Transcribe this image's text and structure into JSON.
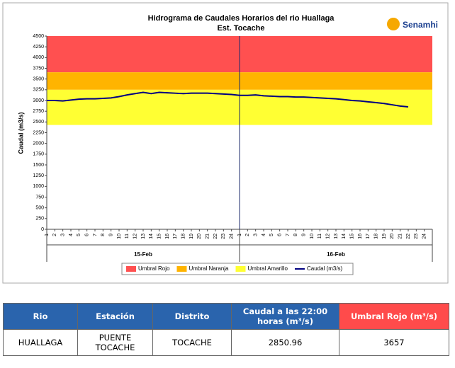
{
  "chart_data": {
    "type": "line",
    "title": "Hidrograma de Caudales Horarios del rio Huallaga",
    "subtitle": "Est. Tocache",
    "logo": "Senamhi",
    "y_label": "Caudal (m3/s)",
    "categories": [
      "1",
      "2",
      "3",
      "4",
      "5",
      "6",
      "7",
      "8",
      "9",
      "10",
      "11",
      "12",
      "13",
      "14",
      "15",
      "16",
      "17",
      "18",
      "19",
      "20",
      "21",
      "22",
      "23",
      "24",
      "1",
      "2",
      "3",
      "4",
      "5",
      "6",
      "7",
      "8",
      "9",
      "10",
      "11",
      "12",
      "13",
      "14",
      "15",
      "16",
      "17",
      "18",
      "19",
      "20",
      "21",
      "22",
      "23",
      "24"
    ],
    "groups": [
      "15-Feb",
      "16-Feb"
    ],
    "thresholds": [
      {
        "name": "Umbral Rojo",
        "color": "#ff5050",
        "value": 3657
      },
      {
        "name": "Umbral Naranja",
        "color": "#ffb400",
        "value": 3250
      },
      {
        "name": "Umbral Amarillo",
        "color": "#ffff33",
        "value": 2430
      }
    ],
    "series": [
      {
        "name": "Caudal (m3/s)",
        "color": "#000080",
        "values": [
          3000,
          3000,
          2990,
          3010,
          3030,
          3040,
          3040,
          3050,
          3060,
          3090,
          3130,
          3160,
          3190,
          3160,
          3190,
          3180,
          3170,
          3160,
          3170,
          3170,
          3170,
          3160,
          3150,
          3140,
          3120,
          3120,
          3130,
          3110,
          3100,
          3090,
          3090,
          3080,
          3080,
          3070,
          3060,
          3050,
          3040,
          3020,
          3000,
          2990,
          2970,
          2950,
          2930,
          2900,
          2870,
          2850.96,
          null,
          null
        ]
      }
    ],
    "ylim": [
      0,
      4500
    ],
    "yticks": [
      0,
      250,
      500,
      750,
      1000,
      1250,
      1500,
      1750,
      2000,
      2250,
      2500,
      2750,
      3000,
      3250,
      3500,
      3750,
      4000,
      4250,
      4500
    ]
  },
  "table": {
    "headers": [
      "Rio",
      "Estación",
      "Distrito",
      "Caudal a las 22:00 horas (m³/s)",
      "Umbral Rojo (m³/s)"
    ],
    "rows": [
      [
        "HUALLAGA",
        "PUENTE TOCACHE",
        "TOCACHE",
        "2850.96",
        "3657"
      ]
    ]
  }
}
